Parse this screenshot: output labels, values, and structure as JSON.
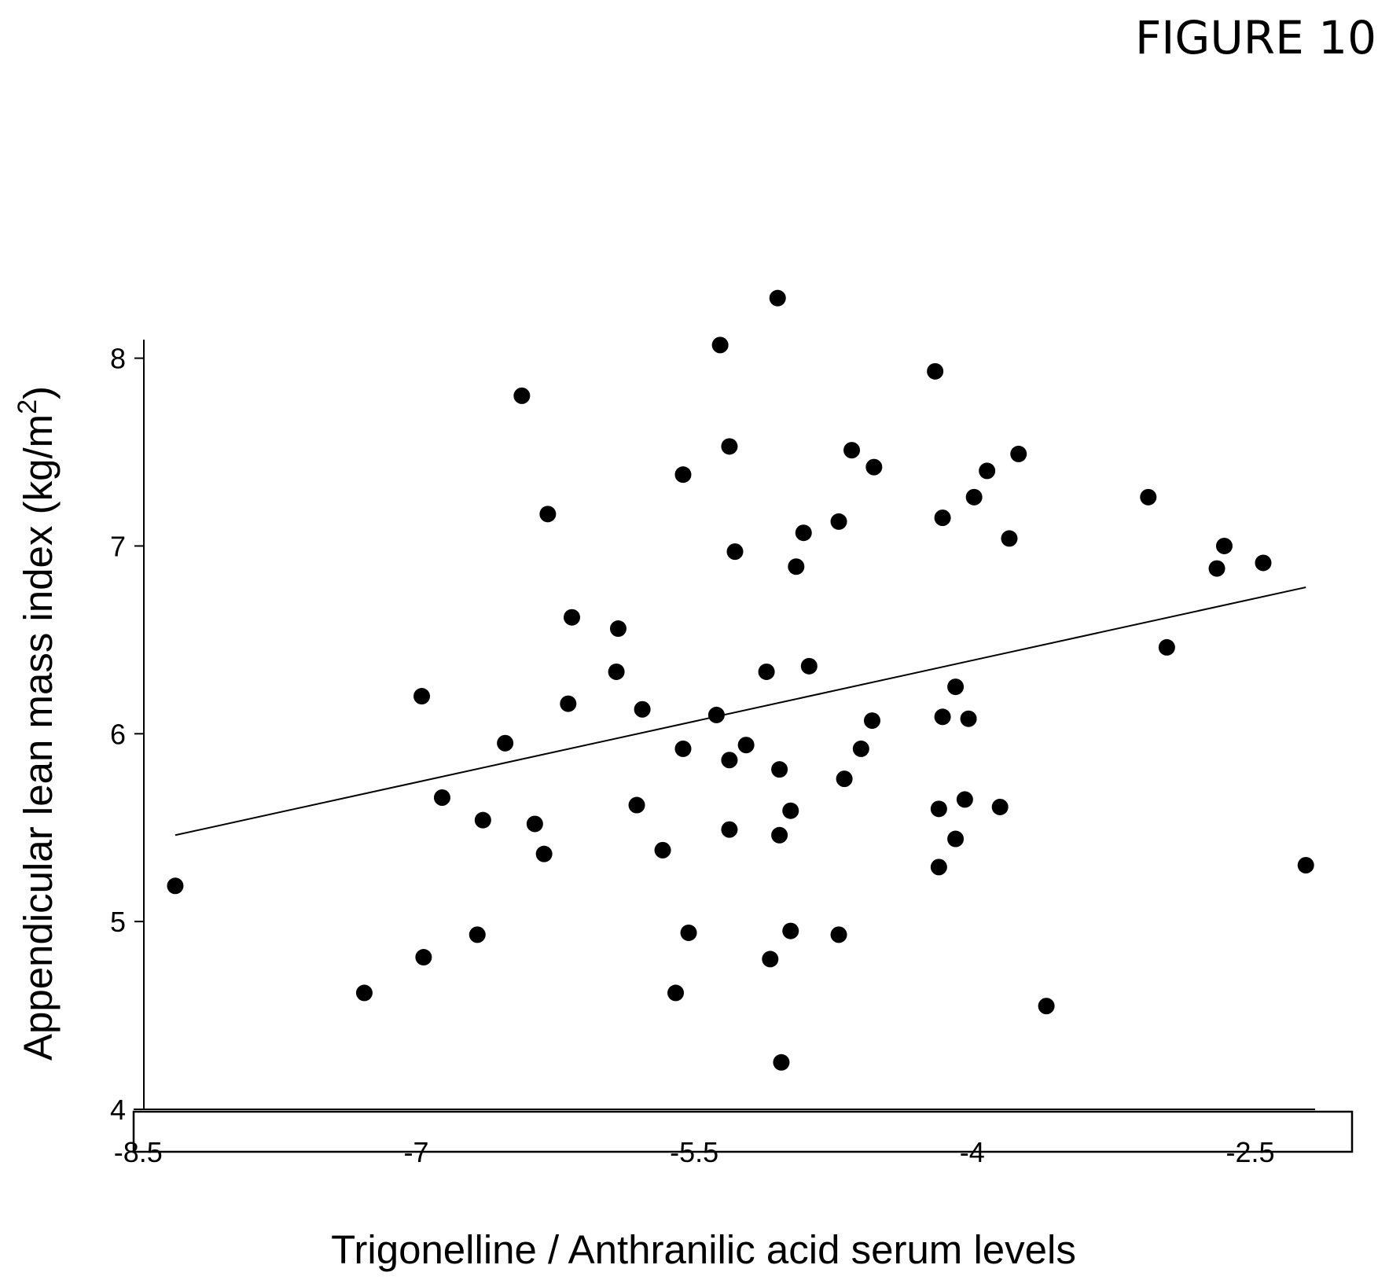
{
  "figure_label": "FIGURE 10",
  "chart_data": {
    "type": "scatter",
    "title": "",
    "xlabel": "Trigonelline / Anthranilic acid serum levels",
    "ylabel": "Appendicular lean mass index (kg/m²)",
    "ylabel_parts": {
      "main": "Appendicular lean mass index (kg/m",
      "sup": "2",
      "end": ")"
    },
    "xlim": [
      -8.55,
      -2.15
    ],
    "ylim": [
      4,
      8.35
    ],
    "x_ticks": [
      -8.5,
      -7,
      -5.5,
      -4,
      -2.5
    ],
    "x_tick_labels": [
      "-8.5",
      "-7",
      "-5.5",
      "-4",
      "-2.5"
    ],
    "y_ticks": [
      4,
      5,
      6,
      7,
      8
    ],
    "y_tick_labels": [
      "4",
      "5",
      "6",
      "7",
      "8"
    ],
    "grid": false,
    "legend": false,
    "trendline": {
      "x": [
        -8.3,
        -2.2
      ],
      "y": [
        5.46,
        6.78
      ]
    },
    "points": [
      {
        "x": -8.3,
        "y": 5.19
      },
      {
        "x": -7.28,
        "y": 4.62
      },
      {
        "x": -6.96,
        "y": 4.81
      },
      {
        "x": -6.97,
        "y": 6.2
      },
      {
        "x": -6.86,
        "y": 5.66
      },
      {
        "x": -6.67,
        "y": 4.93
      },
      {
        "x": -6.64,
        "y": 5.54
      },
      {
        "x": -6.52,
        "y": 5.95
      },
      {
        "x": -6.43,
        "y": 7.8
      },
      {
        "x": -6.36,
        "y": 5.52
      },
      {
        "x": -6.31,
        "y": 5.36
      },
      {
        "x": -6.29,
        "y": 7.17
      },
      {
        "x": -6.18,
        "y": 6.16
      },
      {
        "x": -6.16,
        "y": 6.62
      },
      {
        "x": -5.92,
        "y": 6.33
      },
      {
        "x": -5.91,
        "y": 6.56
      },
      {
        "x": -5.81,
        "y": 5.62
      },
      {
        "x": -5.78,
        "y": 6.13
      },
      {
        "x": -5.67,
        "y": 5.38
      },
      {
        "x": -5.6,
        "y": 4.62
      },
      {
        "x": -5.56,
        "y": 7.38
      },
      {
        "x": -5.56,
        "y": 5.92
      },
      {
        "x": -5.53,
        "y": 4.94
      },
      {
        "x": -5.38,
        "y": 6.1
      },
      {
        "x": -5.36,
        "y": 8.07
      },
      {
        "x": -5.31,
        "y": 5.49
      },
      {
        "x": -5.31,
        "y": 5.86
      },
      {
        "x": -5.31,
        "y": 7.53
      },
      {
        "x": -5.28,
        "y": 6.97
      },
      {
        "x": -5.22,
        "y": 5.94
      },
      {
        "x": -5.11,
        "y": 6.33
      },
      {
        "x": -5.09,
        "y": 4.8
      },
      {
        "x": -5.05,
        "y": 8.32
      },
      {
        "x": -5.04,
        "y": 5.46
      },
      {
        "x": -5.04,
        "y": 5.81
      },
      {
        "x": -5.03,
        "y": 4.25
      },
      {
        "x": -4.98,
        "y": 5.59
      },
      {
        "x": -4.98,
        "y": 4.95
      },
      {
        "x": -4.95,
        "y": 6.89
      },
      {
        "x": -4.91,
        "y": 7.07
      },
      {
        "x": -4.88,
        "y": 6.36
      },
      {
        "x": -4.72,
        "y": 4.93
      },
      {
        "x": -4.72,
        "y": 7.13
      },
      {
        "x": -4.69,
        "y": 5.76
      },
      {
        "x": -4.65,
        "y": 7.51
      },
      {
        "x": -4.6,
        "y": 5.92
      },
      {
        "x": -4.54,
        "y": 6.07
      },
      {
        "x": -4.53,
        "y": 7.42
      },
      {
        "x": -4.2,
        "y": 7.93
      },
      {
        "x": -4.18,
        "y": 5.6
      },
      {
        "x": -4.18,
        "y": 5.29
      },
      {
        "x": -4.16,
        "y": 6.09
      },
      {
        "x": -4.16,
        "y": 7.15
      },
      {
        "x": -4.09,
        "y": 6.25
      },
      {
        "x": -4.09,
        "y": 5.44
      },
      {
        "x": -4.04,
        "y": 5.65
      },
      {
        "x": -4.02,
        "y": 6.08
      },
      {
        "x": -3.99,
        "y": 7.26
      },
      {
        "x": -3.92,
        "y": 7.4
      },
      {
        "x": -3.85,
        "y": 5.61
      },
      {
        "x": -3.8,
        "y": 7.04
      },
      {
        "x": -3.75,
        "y": 7.49
      },
      {
        "x": -3.6,
        "y": 4.55
      },
      {
        "x": -3.05,
        "y": 7.26
      },
      {
        "x": -2.95,
        "y": 6.46
      },
      {
        "x": -2.68,
        "y": 6.88
      },
      {
        "x": -2.64,
        "y": 7.0
      },
      {
        "x": -2.43,
        "y": 6.91
      },
      {
        "x": -2.2,
        "y": 5.3
      }
    ]
  }
}
